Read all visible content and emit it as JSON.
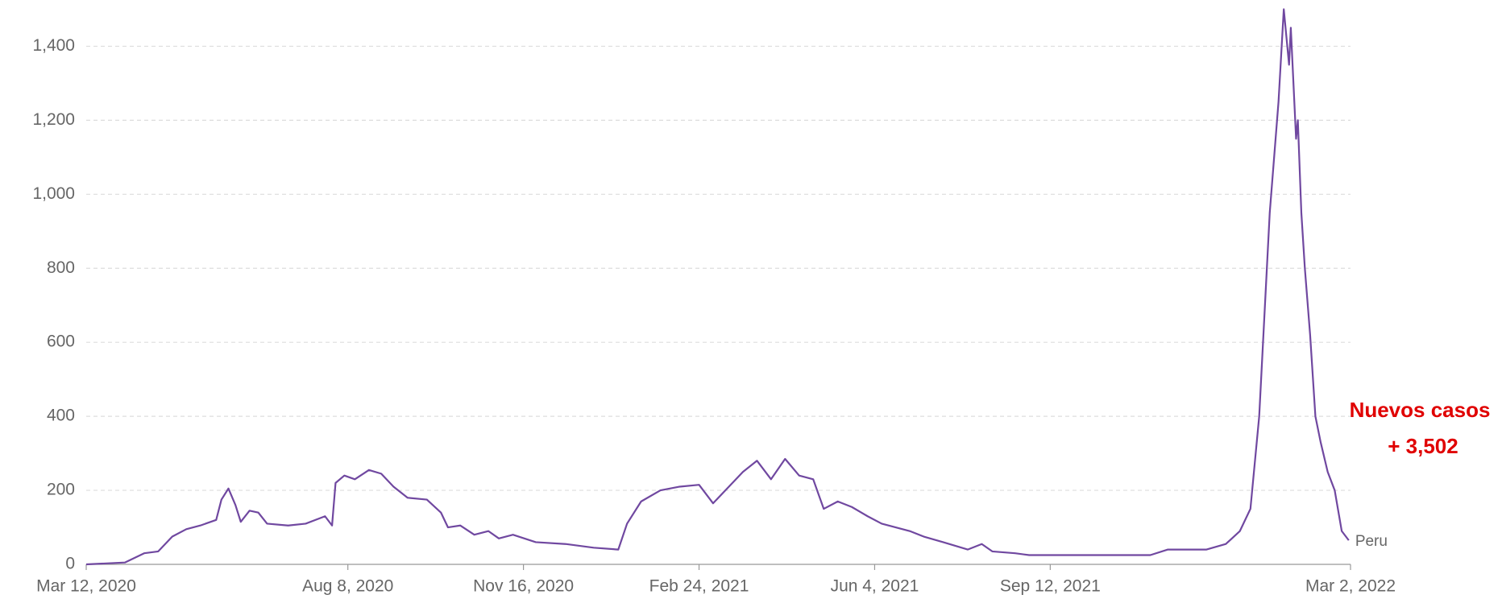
{
  "chart_data": {
    "type": "line",
    "annotations": [
      "Nuevos casos",
      "+ 3,502"
    ],
    "x": [
      "2020-03-12",
      "2020-04-03",
      "2020-04-14",
      "2020-04-22",
      "2020-04-30",
      "2020-05-08",
      "2020-05-16",
      "2020-05-25",
      "2020-05-28",
      "2020-06-01",
      "2020-06-05",
      "2020-06-08",
      "2020-06-13",
      "2020-06-18",
      "2020-06-23",
      "2020-07-05",
      "2020-07-15",
      "2020-07-26",
      "2020-07-30",
      "2020-08-01",
      "2020-08-06",
      "2020-08-12",
      "2020-08-20",
      "2020-08-27",
      "2020-09-03",
      "2020-09-11",
      "2020-09-22",
      "2020-09-30",
      "2020-10-04",
      "2020-10-11",
      "2020-10-19",
      "2020-10-27",
      "2020-11-02",
      "2020-11-10",
      "2020-11-23",
      "2020-12-10",
      "2020-12-26",
      "2021-01-09",
      "2021-01-14",
      "2021-01-22",
      "2021-02-02",
      "2021-02-13",
      "2021-02-24",
      "2021-03-04",
      "2021-03-13",
      "2021-03-21",
      "2021-03-29",
      "2021-04-06",
      "2021-04-14",
      "2021-04-22",
      "2021-04-30",
      "2021-05-06",
      "2021-05-14",
      "2021-05-22",
      "2021-05-31",
      "2021-06-08",
      "2021-06-16",
      "2021-06-24",
      "2021-07-02",
      "2021-07-13",
      "2021-07-27",
      "2021-08-04",
      "2021-08-10",
      "2021-08-23",
      "2021-08-31",
      "2021-09-14",
      "2021-10-11",
      "2021-11-08",
      "2021-11-18",
      "2021-12-10",
      "2021-12-21",
      "2021-12-29",
      "2022-01-04",
      "2022-01-09",
      "2022-01-15",
      "2022-01-20",
      "2022-01-23",
      "2022-01-26",
      "2022-01-27",
      "2022-01-30",
      "2022-01-31",
      "2022-02-02",
      "2022-02-04",
      "2022-02-07",
      "2022-02-10",
      "2022-02-13",
      "2022-02-17",
      "2022-02-21",
      "2022-02-25",
      "2022-03-01"
    ],
    "series": [
      {
        "name": "Peru",
        "color": "#7048a0",
        "values": [
          0,
          5,
          30,
          35,
          75,
          95,
          105,
          120,
          175,
          205,
          160,
          115,
          145,
          140,
          110,
          105,
          110,
          130,
          105,
          220,
          240,
          230,
          255,
          245,
          210,
          180,
          175,
          140,
          100,
          105,
          80,
          90,
          70,
          80,
          60,
          55,
          45,
          40,
          110,
          170,
          200,
          210,
          215,
          165,
          210,
          250,
          280,
          230,
          285,
          240,
          230,
          150,
          170,
          155,
          130,
          110,
          100,
          90,
          75,
          60,
          40,
          55,
          35,
          30,
          25,
          25,
          25,
          25,
          40,
          40,
          55,
          90,
          150,
          400,
          950,
          1250,
          1500,
          1350,
          1450,
          1150,
          1200,
          950,
          800,
          620,
          400,
          330,
          250,
          200,
          90,
          65
        ]
      }
    ],
    "xlim": [
      "2020-03-12",
      "2022-03-02"
    ],
    "xticks": [
      {
        "value": "2020-03-12",
        "label": "Mar 12, 2020"
      },
      {
        "value": "2020-08-08",
        "label": "Aug 8, 2020"
      },
      {
        "value": "2020-11-16",
        "label": "Nov 16, 2020"
      },
      {
        "value": "2021-02-24",
        "label": "Feb 24, 2021"
      },
      {
        "value": "2021-06-04",
        "label": "Jun 4, 2021"
      },
      {
        "value": "2021-09-12",
        "label": "Sep 12, 2021"
      },
      {
        "value": "2022-03-02",
        "label": "Mar 2, 2022"
      }
    ],
    "ylim": [
      0,
      1525
    ],
    "yticks": [
      0,
      {
        "value": 200,
        "label": "200"
      },
      {
        "value": 400,
        "label": "400"
      },
      {
        "value": 600,
        "label": "600"
      },
      {
        "value": 800,
        "label": "800"
      },
      {
        "value": 1000,
        "label": "1,000"
      },
      {
        "value": 1200,
        "label": "1,200"
      },
      {
        "value": 1400,
        "label": "1,400"
      }
    ],
    "grid": true
  }
}
